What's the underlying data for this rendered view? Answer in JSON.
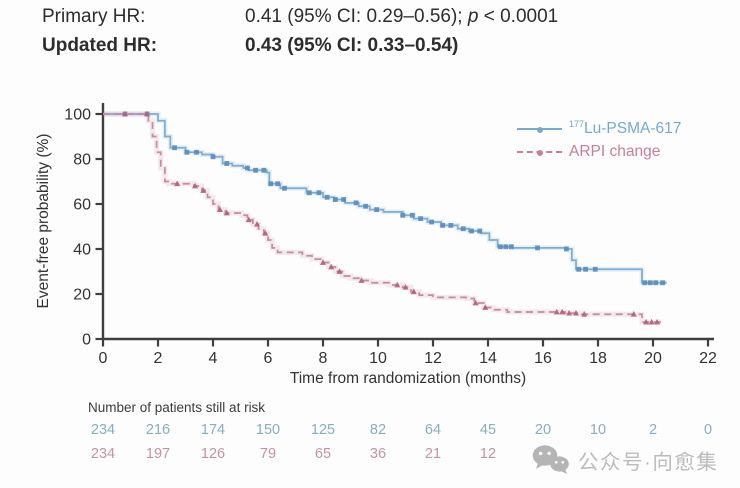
{
  "header": {
    "primary": {
      "label": "Primary HR:",
      "value_pre": "0.41 (95% CI: 0.29–0.56); ",
      "p": "p",
      "p_post": " < 0.0001"
    },
    "updated": {
      "label": "Updated HR:",
      "value": "0.43 (95% CI: 0.33–0.54)"
    }
  },
  "legend": {
    "items": [
      {
        "sup": "177",
        "label": "Lu-PSMA-617",
        "color": "#74a9d4",
        "line_style": "solid"
      },
      {
        "sup": "",
        "label": "ARPI change",
        "color": "#c87f96",
        "line_style": "dashed"
      }
    ]
  },
  "chart_data": {
    "type": "line",
    "subtype": "kaplan-meier-step",
    "title": "",
    "xlabel": "Time from randomization (months)",
    "ylabel": "Event-free probability (%)",
    "xlim": [
      0,
      22
    ],
    "ylim": [
      0,
      100
    ],
    "x_ticks": [
      0,
      2,
      4,
      6,
      8,
      10,
      12,
      14,
      16,
      18,
      20,
      22
    ],
    "y_ticks": [
      0,
      20,
      40,
      60,
      80,
      100
    ],
    "grid": false,
    "legend_position": "upper right",
    "axis_color": "#3f3f3f",
    "tick_label_color": "#333333",
    "series": [
      {
        "name": "177Lu-PSMA-617",
        "color": "#7cadd2",
        "marker_color": "#5a8dbd",
        "line_style": "solid",
        "points": [
          [
            0,
            100
          ],
          [
            1.8,
            100
          ],
          [
            2.0,
            97
          ],
          [
            2.25,
            90
          ],
          [
            2.45,
            85
          ],
          [
            3.0,
            83
          ],
          [
            3.6,
            82
          ],
          [
            4.0,
            81
          ],
          [
            4.35,
            78
          ],
          [
            4.7,
            77
          ],
          [
            5.1,
            76
          ],
          [
            5.3,
            75
          ],
          [
            5.95,
            74
          ],
          [
            6.05,
            69
          ],
          [
            6.45,
            67
          ],
          [
            7.4,
            65
          ],
          [
            8.0,
            63
          ],
          [
            8.4,
            62
          ],
          [
            8.8,
            60.5
          ],
          [
            9.3,
            59
          ],
          [
            9.7,
            57.5
          ],
          [
            10.2,
            56.5
          ],
          [
            10.9,
            55
          ],
          [
            11.3,
            53.5
          ],
          [
            11.8,
            52
          ],
          [
            12.3,
            50.5
          ],
          [
            12.9,
            49
          ],
          [
            13.3,
            48
          ],
          [
            13.75,
            47
          ],
          [
            14.05,
            44
          ],
          [
            14.35,
            41
          ],
          [
            14.9,
            40.5
          ],
          [
            16.85,
            40
          ],
          [
            17.05,
            35
          ],
          [
            17.2,
            31
          ],
          [
            19.45,
            31
          ],
          [
            19.6,
            25
          ],
          [
            20.5,
            25
          ]
        ],
        "censor_times": [
          0.8,
          1.6,
          2.6,
          3.05,
          3.4,
          4.0,
          4.5,
          5.25,
          5.55,
          5.85,
          6.1,
          6.35,
          6.6,
          7.5,
          7.85,
          8.15,
          8.45,
          8.75,
          9.2,
          9.55,
          9.95,
          10.9,
          11.25,
          11.55,
          11.95,
          12.35,
          12.65,
          13.1,
          13.4,
          13.7,
          14.45,
          14.65,
          14.85,
          15.8,
          16.85,
          17.3,
          17.55,
          17.9,
          19.7,
          19.9,
          20.1,
          20.35
        ]
      },
      {
        "name": "ARPI change",
        "color": "#c78ba0",
        "marker_color": "#b25f7b",
        "line_style": "dashed",
        "points": [
          [
            0,
            100
          ],
          [
            1.5,
            100
          ],
          [
            1.65,
            97
          ],
          [
            1.8,
            90
          ],
          [
            1.95,
            83
          ],
          [
            2.1,
            76
          ],
          [
            2.25,
            70
          ],
          [
            2.4,
            69
          ],
          [
            3.3,
            68
          ],
          [
            3.6,
            66
          ],
          [
            3.8,
            63
          ],
          [
            4.0,
            60
          ],
          [
            4.2,
            57.5
          ],
          [
            4.45,
            56
          ],
          [
            5.05,
            55
          ],
          [
            5.25,
            53
          ],
          [
            5.45,
            51
          ],
          [
            5.65,
            49
          ],
          [
            5.85,
            47
          ],
          [
            6.0,
            44
          ],
          [
            6.15,
            40.5
          ],
          [
            6.35,
            38.5
          ],
          [
            7.25,
            37
          ],
          [
            7.6,
            35.5
          ],
          [
            7.95,
            34
          ],
          [
            8.2,
            32
          ],
          [
            8.45,
            30
          ],
          [
            8.7,
            28
          ],
          [
            9.0,
            27
          ],
          [
            9.35,
            26
          ],
          [
            9.75,
            25
          ],
          [
            10.4,
            24
          ],
          [
            10.9,
            23
          ],
          [
            11.2,
            21
          ],
          [
            11.5,
            19.5
          ],
          [
            12.0,
            18.5
          ],
          [
            13.2,
            18
          ],
          [
            13.5,
            16
          ],
          [
            13.85,
            14
          ],
          [
            14.2,
            13
          ],
          [
            14.7,
            12
          ],
          [
            16.8,
            11.5
          ],
          [
            17.4,
            11
          ],
          [
            19.45,
            11
          ],
          [
            19.6,
            7.5
          ],
          [
            20.3,
            7.5
          ]
        ],
        "censor_times": [
          0.8,
          1.6,
          2.7,
          3.35,
          3.65,
          4.25,
          4.5,
          5.3,
          5.6,
          5.9,
          8.0,
          8.3,
          8.6,
          9.4,
          10.7,
          11.0,
          11.3,
          13.55,
          13.9,
          16.5,
          16.7,
          16.95,
          17.2,
          17.5,
          19.3,
          19.75,
          19.95,
          20.15
        ]
      }
    ]
  },
  "at_risk": {
    "title": "Number of patients still at risk",
    "times": [
      0,
      2,
      4,
      6,
      8,
      10,
      12,
      14,
      16,
      18,
      20,
      22
    ],
    "rows": [
      {
        "name": "177Lu-PSMA-617",
        "color": "#87aebf",
        "values": [
          "234",
          "216",
          "174",
          "150",
          "125",
          "82",
          "64",
          "45",
          "20",
          "10",
          "2",
          "0"
        ]
      },
      {
        "name": "ARPI change",
        "color": "#c493a3",
        "values": [
          "234",
          "197",
          "126",
          "79",
          "65",
          "36",
          "21",
          "12",
          "",
          "",
          "",
          ""
        ]
      }
    ]
  },
  "watermark": {
    "text": "公众号·向愈集"
  }
}
